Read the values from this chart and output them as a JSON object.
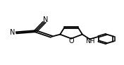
{
  "bg_color": "#ffffff",
  "bond_color": "#000000",
  "text_color": "#000000",
  "line_width": 1.3,
  "font_size": 6.5,
  "figure_width": 1.76,
  "figure_height": 0.92,
  "dpi": 100,
  "layout": {
    "xlim": [
      0,
      1
    ],
    "ylim": [
      0,
      1
    ]
  }
}
